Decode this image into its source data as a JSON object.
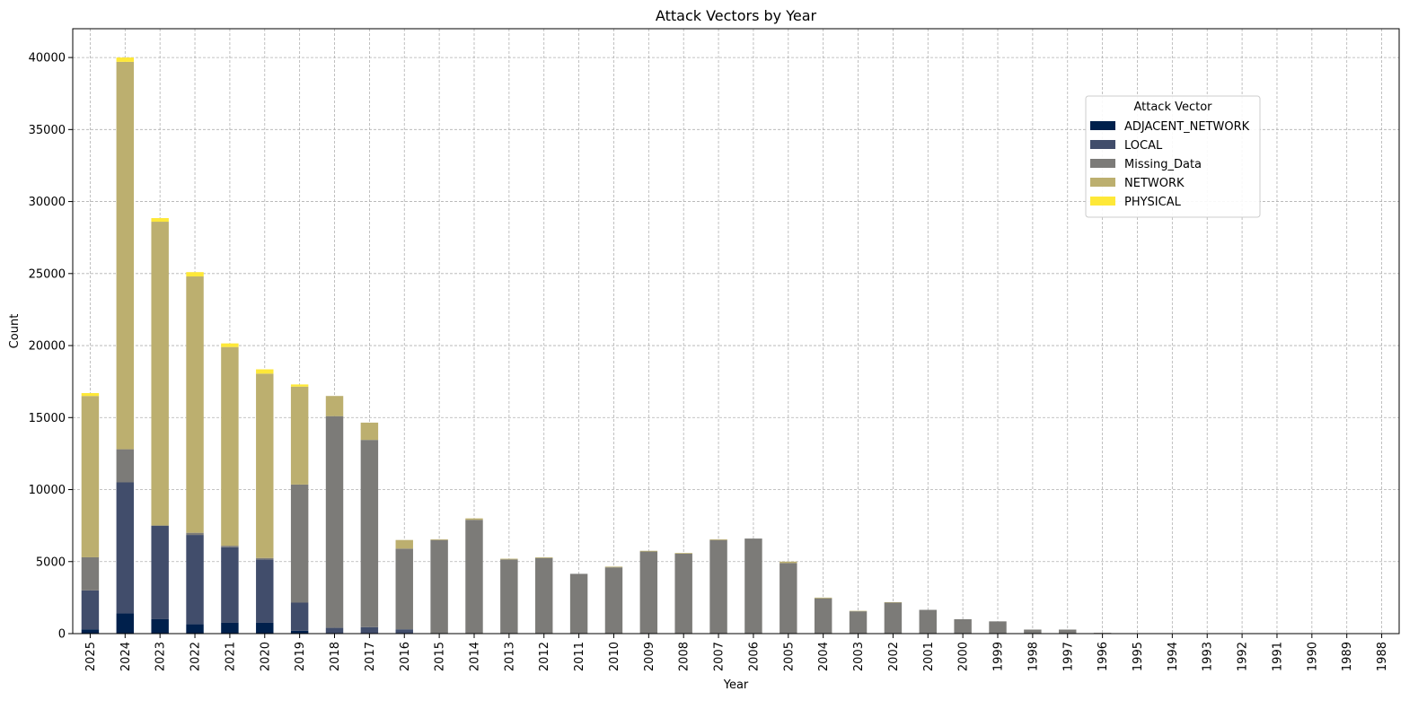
{
  "chart_data": {
    "type": "bar",
    "stacked": true,
    "title": "Attack Vectors by Year",
    "xlabel": "Year",
    "ylabel": "Count",
    "ylim": [
      0,
      42000
    ],
    "yticks": [
      0,
      5000,
      10000,
      15000,
      20000,
      25000,
      30000,
      35000,
      40000
    ],
    "grid": true,
    "legend_title": "Attack Vector",
    "legend_position": "upper-right",
    "categories": [
      "2025",
      "2024",
      "2023",
      "2022",
      "2021",
      "2020",
      "2019",
      "2018",
      "2017",
      "2016",
      "2015",
      "2014",
      "2013",
      "2012",
      "2011",
      "2010",
      "2009",
      "2008",
      "2007",
      "2006",
      "2005",
      "2004",
      "2003",
      "2002",
      "2001",
      "2000",
      "1999",
      "1998",
      "1997",
      "1996",
      "1995",
      "1994",
      "1993",
      "1992",
      "1991",
      "1990",
      "1989",
      "1988"
    ],
    "series": [
      {
        "name": "ADJACENT_NETWORK",
        "color": "#00204c",
        "values": [
          300,
          1400,
          1000,
          650,
          750,
          750,
          200,
          0,
          0,
          0,
          0,
          0,
          0,
          0,
          0,
          0,
          0,
          0,
          0,
          0,
          0,
          0,
          0,
          0,
          0,
          0,
          0,
          0,
          0,
          0,
          0,
          0,
          0,
          0,
          0,
          0,
          0,
          0
        ]
      },
      {
        "name": "LOCAL",
        "color": "#414d6b",
        "values": [
          2700,
          9100,
          6500,
          6200,
          5250,
          4400,
          1950,
          400,
          450,
          300,
          0,
          0,
          0,
          0,
          0,
          0,
          0,
          0,
          0,
          0,
          0,
          0,
          0,
          0,
          0,
          0,
          0,
          0,
          0,
          0,
          0,
          0,
          0,
          0,
          0,
          0,
          0,
          0
        ]
      },
      {
        "name": "Missing_Data",
        "color": "#7c7b78",
        "values": [
          2300,
          2300,
          0,
          150,
          100,
          100,
          8200,
          14700,
          13000,
          5600,
          6500,
          7900,
          5150,
          5250,
          4150,
          4600,
          5700,
          5550,
          6500,
          6600,
          4900,
          2450,
          1550,
          2150,
          1650,
          1000,
          850,
          280,
          280,
          50,
          0,
          0,
          0,
          0,
          0,
          0,
          0,
          0
        ]
      },
      {
        "name": "NETWORK",
        "color": "#bcaf6f",
        "values": [
          11200,
          26900,
          21100,
          17800,
          13800,
          12800,
          6800,
          1400,
          1200,
          600,
          50,
          100,
          50,
          50,
          0,
          50,
          50,
          50,
          50,
          0,
          100,
          50,
          30,
          30,
          0,
          0,
          0,
          0,
          0,
          0,
          0,
          0,
          0,
          0,
          0,
          0,
          0,
          0
        ]
      },
      {
        "name": "PHYSICAL",
        "color": "#fee838",
        "values": [
          200,
          300,
          250,
          300,
          250,
          300,
          150,
          0,
          0,
          0,
          0,
          0,
          0,
          0,
          0,
          0,
          0,
          0,
          0,
          0,
          0,
          0,
          0,
          0,
          0,
          0,
          0,
          0,
          0,
          0,
          0,
          0,
          0,
          0,
          0,
          0,
          0,
          0
        ]
      }
    ]
  }
}
